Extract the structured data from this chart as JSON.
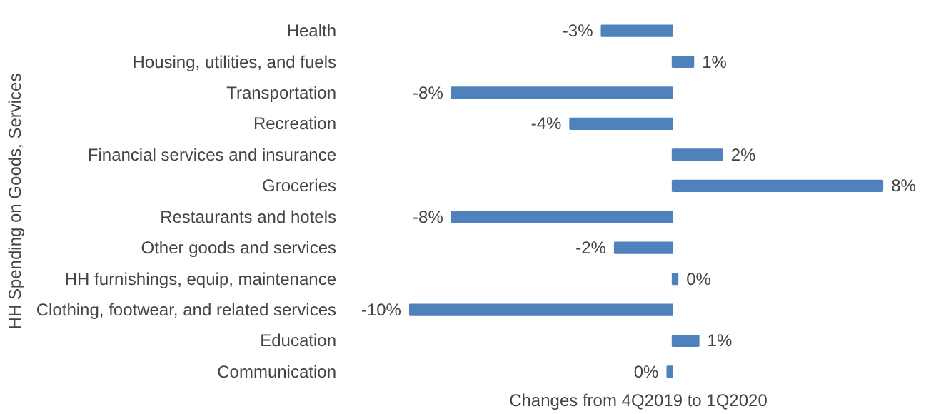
{
  "chart_data": {
    "type": "bar",
    "orientation": "horizontal",
    "ylabel": "HH Spending on Goods, Services",
    "xlabel": "Changes from 4Q2019 to 1Q2020",
    "categories": [
      "Health",
      "Housing, utilities, and fuels",
      "Transportation",
      "Recreation",
      "Financial services and insurance",
      "Groceries",
      "Restaurants and hotels",
      "Other goods and services",
      "HH furnishings, equip, maintenance",
      "Clothing, footwear, and related services",
      "Education",
      "Communication"
    ],
    "values": [
      -2.7,
      0.8,
      -8.4,
      -3.9,
      1.9,
      8.0,
      -8.4,
      -2.2,
      0.2,
      -10.0,
      1.0,
      -0.2
    ],
    "value_labels": [
      "-3%",
      "1%",
      "-8%",
      "-4%",
      "2%",
      "8%",
      "-8%",
      "-2%",
      "0%",
      "-10%",
      "1%",
      "0%"
    ],
    "color": "#4f81bd",
    "grid": false
  }
}
